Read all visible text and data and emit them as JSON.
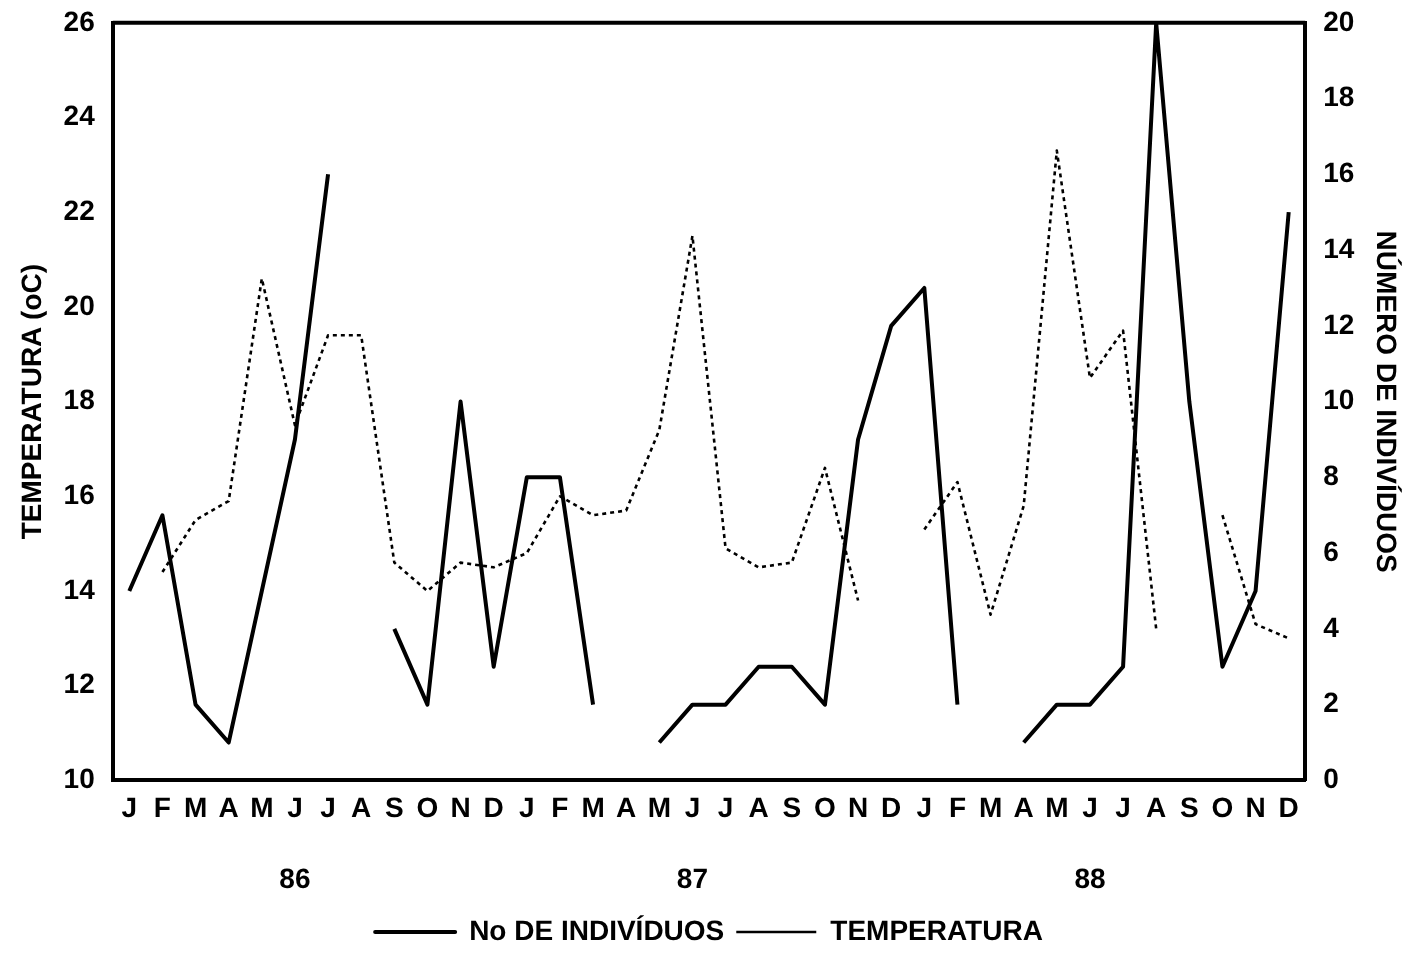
{
  "chart_data": {
    "type": "line",
    "categories": [
      "J",
      "F",
      "M",
      "A",
      "M",
      "J",
      "J",
      "A",
      "S",
      "O",
      "N",
      "D",
      "J",
      "F",
      "M",
      "A",
      "M",
      "J",
      "J",
      "A",
      "S",
      "O",
      "N",
      "D",
      "J",
      "F",
      "M",
      "A",
      "M",
      "J",
      "J",
      "A",
      "S",
      "O",
      "N",
      "D"
    ],
    "ylabel": "TEMPERATURA (oC)",
    "y2label": "NÚMERO DE INDIVÍDUOS",
    "ylim": [
      10,
      26
    ],
    "yticks": [
      10,
      12,
      14,
      16,
      18,
      20,
      22,
      24,
      26
    ],
    "y2lim": [
      0,
      20
    ],
    "y2ticks": [
      0,
      2,
      4,
      6,
      8,
      10,
      12,
      14,
      16,
      18,
      20
    ],
    "annotations": [
      "86",
      "87",
      "88"
    ],
    "grid": false,
    "legend": "bottom",
    "marker": "none",
    "series": [
      {
        "name": "No DE INDIVÍDUOS",
        "color": "#000000",
        "axis": "y2",
        "line_style": "solid",
        "values": [
          5,
          7,
          2,
          1,
          5,
          9,
          16,
          null,
          4,
          2,
          10,
          3,
          8,
          8,
          2,
          null,
          1,
          2,
          2,
          3,
          3,
          2,
          9,
          12,
          13,
          2,
          null,
          1,
          2,
          2,
          3,
          20,
          10,
          3,
          5,
          15
        ]
      },
      {
        "name": "TEMPERATURA",
        "color": "#000000",
        "line_style": "dotted",
        "values": [
          null,
          14.4,
          15.5,
          15.9,
          20.6,
          17.5,
          19.4,
          19.4,
          14.6,
          14.0,
          14.6,
          14.5,
          14.8,
          16.0,
          15.6,
          15.7,
          17.4,
          21.5,
          14.9,
          14.5,
          14.6,
          16.6,
          13.8,
          null,
          15.3,
          16.3,
          13.5,
          15.8,
          23.3,
          18.5,
          19.5,
          13.2,
          null,
          15.6,
          13.3,
          13.0
        ]
      }
    ]
  }
}
